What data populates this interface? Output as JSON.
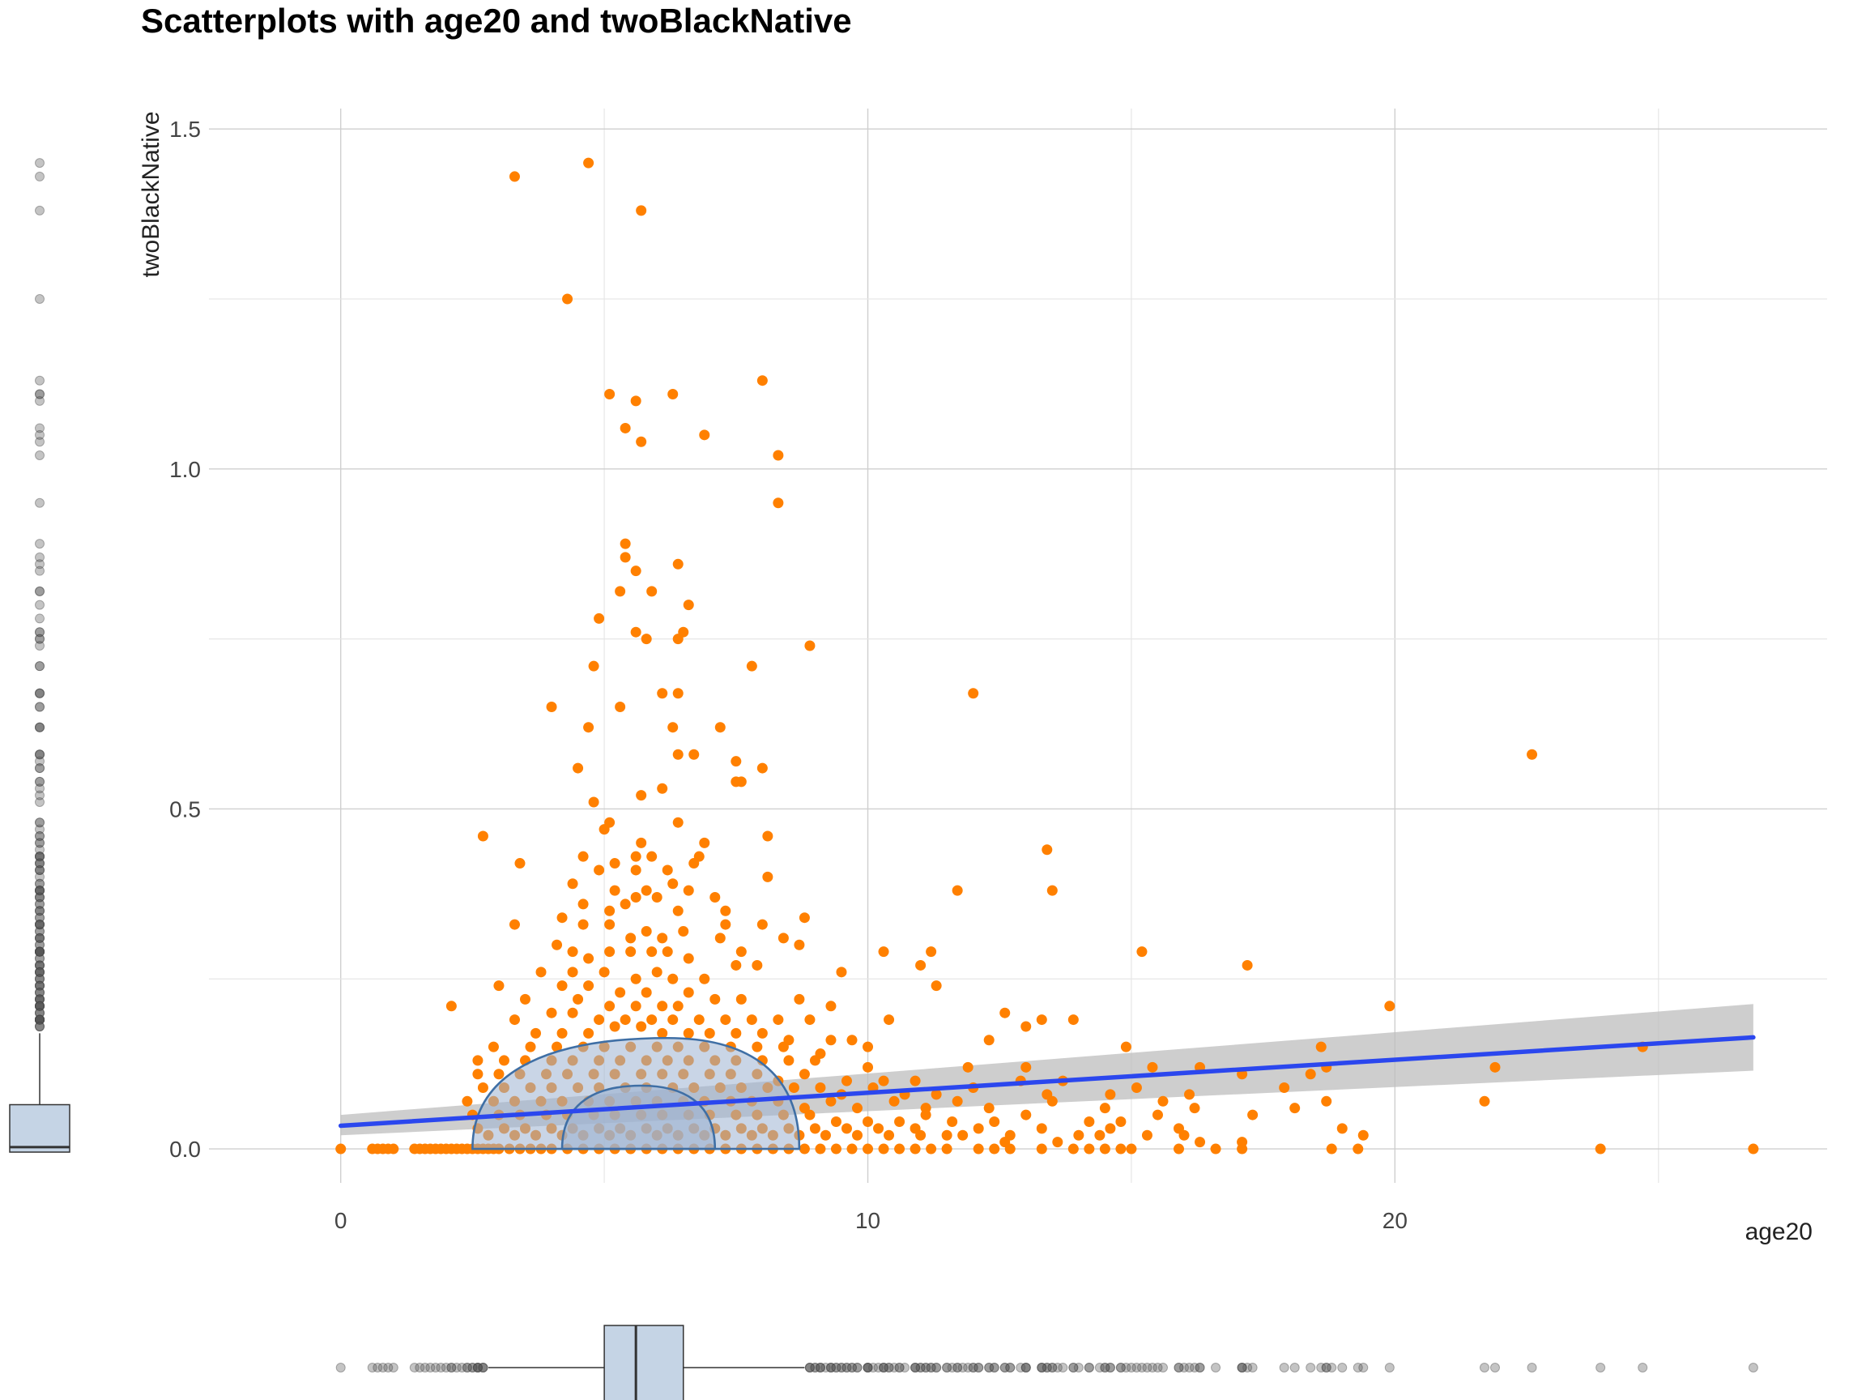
{
  "chart_data": {
    "type": "scatter",
    "title": "Scatterplots with age20 and twoBlackNative",
    "xlabel": "age20",
    "ylabel": "twoBlackNative",
    "xlim": [
      -2.5,
      28.2
    ],
    "ylim": [
      -0.05,
      1.53
    ],
    "x_ticks": [
      0,
      10,
      20
    ],
    "y_ticks": [
      0.0,
      0.5,
      1.0,
      1.5
    ],
    "x_tick_labels": [
      "0",
      "10",
      "20"
    ],
    "y_tick_labels": [
      "0.0",
      "0.5",
      "1.0",
      "1.5"
    ],
    "grid": true,
    "colors": {
      "points": "#ff8000",
      "fit_line": "#2b47ee",
      "confidence_band": "#bdbdbd",
      "density_fill": "#9db3d1",
      "density_stroke": "#3f6fa5",
      "box_fill": "#c5d4e5",
      "marginal_points": "#555555"
    },
    "fit_line": {
      "x": [
        0.0,
        26.8
      ],
      "y": [
        0.034,
        0.164
      ]
    },
    "confidence_band": {
      "x": [
        0.0,
        26.8
      ],
      "y_low": [
        0.02,
        0.115
      ],
      "y_high": [
        0.05,
        0.213
      ]
    },
    "x_boxplot": {
      "q1": 5.0,
      "median": 5.6,
      "q3": 6.5,
      "whisker_low": 2.8,
      "whisker_high": 8.8
    },
    "y_boxplot": {
      "q1": 0.0,
      "median": 0.005,
      "q3": 0.065,
      "whisker_low": 0.0,
      "whisker_high": 0.17
    },
    "points": [
      [
        3.3,
        1.43
      ],
      [
        4.7,
        1.45
      ],
      [
        5.7,
        1.38
      ],
      [
        4.3,
        1.25
      ],
      [
        8.0,
        1.13
      ],
      [
        5.1,
        1.11
      ],
      [
        5.6,
        1.1
      ],
      [
        6.3,
        1.11
      ],
      [
        5.4,
        1.06
      ],
      [
        5.7,
        1.04
      ],
      [
        6.9,
        1.05
      ],
      [
        8.3,
        1.02
      ],
      [
        8.3,
        0.95
      ],
      [
        5.4,
        0.89
      ],
      [
        5.4,
        0.87
      ],
      [
        6.4,
        0.86
      ],
      [
        5.6,
        0.85
      ],
      [
        5.3,
        0.82
      ],
      [
        5.9,
        0.82
      ],
      [
        6.6,
        0.8
      ],
      [
        4.9,
        0.78
      ],
      [
        5.6,
        0.76
      ],
      [
        5.8,
        0.75
      ],
      [
        6.5,
        0.76
      ],
      [
        6.4,
        0.75
      ],
      [
        8.9,
        0.74
      ],
      [
        4.8,
        0.71
      ],
      [
        7.8,
        0.71
      ],
      [
        12.0,
        0.67
      ],
      [
        6.1,
        0.67
      ],
      [
        6.4,
        0.67
      ],
      [
        4.0,
        0.65
      ],
      [
        5.3,
        0.65
      ],
      [
        6.3,
        0.62
      ],
      [
        7.2,
        0.62
      ],
      [
        4.7,
        0.62
      ],
      [
        6.4,
        0.58
      ],
      [
        6.7,
        0.58
      ],
      [
        22.6,
        0.58
      ],
      [
        7.5,
        0.57
      ],
      [
        8.0,
        0.56
      ],
      [
        4.5,
        0.56
      ],
      [
        7.5,
        0.54
      ],
      [
        7.6,
        0.54
      ],
      [
        5.0,
        0.47
      ],
      [
        4.8,
        0.51
      ],
      [
        5.1,
        0.48
      ],
      [
        5.7,
        0.52
      ],
      [
        6.1,
        0.53
      ],
      [
        6.4,
        0.48
      ],
      [
        2.7,
        0.46
      ],
      [
        8.1,
        0.46
      ],
      [
        5.7,
        0.45
      ],
      [
        6.9,
        0.45
      ],
      [
        4.6,
        0.43
      ],
      [
        5.6,
        0.43
      ],
      [
        5.9,
        0.43
      ],
      [
        6.8,
        0.43
      ],
      [
        13.4,
        0.44
      ],
      [
        3.4,
        0.42
      ],
      [
        4.9,
        0.41
      ],
      [
        5.2,
        0.42
      ],
      [
        5.6,
        0.41
      ],
      [
        6.2,
        0.41
      ],
      [
        6.7,
        0.42
      ],
      [
        8.1,
        0.4
      ],
      [
        13.5,
        0.38
      ],
      [
        11.7,
        0.38
      ],
      [
        4.4,
        0.39
      ],
      [
        5.2,
        0.38
      ],
      [
        5.6,
        0.37
      ],
      [
        5.8,
        0.38
      ],
      [
        6.0,
        0.37
      ],
      [
        6.3,
        0.39
      ],
      [
        6.6,
        0.38
      ],
      [
        7.1,
        0.37
      ],
      [
        4.6,
        0.36
      ],
      [
        5.1,
        0.35
      ],
      [
        5.4,
        0.36
      ],
      [
        6.4,
        0.35
      ],
      [
        7.3,
        0.35
      ],
      [
        8.8,
        0.34
      ],
      [
        4.2,
        0.34
      ],
      [
        4.6,
        0.33
      ],
      [
        5.1,
        0.33
      ],
      [
        5.8,
        0.32
      ],
      [
        6.5,
        0.32
      ],
      [
        3.3,
        0.33
      ],
      [
        7.3,
        0.33
      ],
      [
        8.0,
        0.33
      ],
      [
        5.5,
        0.31
      ],
      [
        6.1,
        0.31
      ],
      [
        7.2,
        0.31
      ],
      [
        8.4,
        0.31
      ],
      [
        8.7,
        0.3
      ],
      [
        4.1,
        0.3
      ],
      [
        4.4,
        0.29
      ],
      [
        4.7,
        0.28
      ],
      [
        5.1,
        0.29
      ],
      [
        5.5,
        0.29
      ],
      [
        5.9,
        0.29
      ],
      [
        6.2,
        0.29
      ],
      [
        6.6,
        0.28
      ],
      [
        7.6,
        0.29
      ],
      [
        10.3,
        0.29
      ],
      [
        11.2,
        0.29
      ],
      [
        15.2,
        0.29
      ],
      [
        17.2,
        0.27
      ],
      [
        7.5,
        0.27
      ],
      [
        7.9,
        0.27
      ],
      [
        11.0,
        0.27
      ],
      [
        9.5,
        0.26
      ],
      [
        3.8,
        0.26
      ],
      [
        4.4,
        0.26
      ],
      [
        5.0,
        0.26
      ],
      [
        5.6,
        0.25
      ],
      [
        6.0,
        0.26
      ],
      [
        6.3,
        0.25
      ],
      [
        6.9,
        0.25
      ],
      [
        3.0,
        0.24
      ],
      [
        11.3,
        0.24
      ],
      [
        4.2,
        0.24
      ],
      [
        4.7,
        0.24
      ],
      [
        5.3,
        0.23
      ],
      [
        5.8,
        0.23
      ],
      [
        6.6,
        0.23
      ],
      [
        7.1,
        0.22
      ],
      [
        7.6,
        0.22
      ],
      [
        8.7,
        0.22
      ],
      [
        3.5,
        0.22
      ],
      [
        4.5,
        0.22
      ],
      [
        5.1,
        0.21
      ],
      [
        5.6,
        0.21
      ],
      [
        6.1,
        0.21
      ],
      [
        6.4,
        0.21
      ],
      [
        2.1,
        0.21
      ],
      [
        9.3,
        0.21
      ],
      [
        12.6,
        0.2
      ],
      [
        13.3,
        0.19
      ],
      [
        13.9,
        0.19
      ],
      [
        19.9,
        0.21
      ],
      [
        4.0,
        0.2
      ],
      [
        4.4,
        0.2
      ],
      [
        4.9,
        0.19
      ],
      [
        5.4,
        0.19
      ],
      [
        5.9,
        0.19
      ],
      [
        6.3,
        0.19
      ],
      [
        6.8,
        0.19
      ],
      [
        7.3,
        0.19
      ],
      [
        7.8,
        0.19
      ],
      [
        8.3,
        0.19
      ],
      [
        8.9,
        0.19
      ],
      [
        10.4,
        0.19
      ],
      [
        3.3,
        0.19
      ],
      [
        3.7,
        0.17
      ],
      [
        4.2,
        0.17
      ],
      [
        4.7,
        0.17
      ],
      [
        5.2,
        0.18
      ],
      [
        5.7,
        0.18
      ],
      [
        6.1,
        0.17
      ],
      [
        6.6,
        0.17
      ],
      [
        7.0,
        0.17
      ],
      [
        7.5,
        0.17
      ],
      [
        8.0,
        0.17
      ],
      [
        8.5,
        0.16
      ],
      [
        9.3,
        0.16
      ],
      [
        9.7,
        0.16
      ],
      [
        13.0,
        0.18
      ],
      [
        2.9,
        0.15
      ],
      [
        3.6,
        0.15
      ],
      [
        4.1,
        0.15
      ],
      [
        4.6,
        0.15
      ],
      [
        5.0,
        0.15
      ],
      [
        5.5,
        0.15
      ],
      [
        6.0,
        0.15
      ],
      [
        6.4,
        0.15
      ],
      [
        6.9,
        0.15
      ],
      [
        7.4,
        0.15
      ],
      [
        7.9,
        0.15
      ],
      [
        8.4,
        0.15
      ],
      [
        9.1,
        0.14
      ],
      [
        10.0,
        0.15
      ],
      [
        12.3,
        0.16
      ],
      [
        14.9,
        0.15
      ],
      [
        18.6,
        0.15
      ],
      [
        24.7,
        0.15
      ],
      [
        2.6,
        0.13
      ],
      [
        3.1,
        0.13
      ],
      [
        3.5,
        0.13
      ],
      [
        4.0,
        0.13
      ],
      [
        4.4,
        0.13
      ],
      [
        4.9,
        0.13
      ],
      [
        5.3,
        0.13
      ],
      [
        5.8,
        0.13
      ],
      [
        6.2,
        0.13
      ],
      [
        6.6,
        0.13
      ],
      [
        7.1,
        0.13
      ],
      [
        7.5,
        0.13
      ],
      [
        8.0,
        0.13
      ],
      [
        8.5,
        0.13
      ],
      [
        9.0,
        0.13
      ],
      [
        10.0,
        0.12
      ],
      [
        11.9,
        0.12
      ],
      [
        13.0,
        0.12
      ],
      [
        15.4,
        0.12
      ],
      [
        16.3,
        0.12
      ],
      [
        18.7,
        0.12
      ],
      [
        21.9,
        0.12
      ],
      [
        2.6,
        0.11
      ],
      [
        3.0,
        0.11
      ],
      [
        3.4,
        0.11
      ],
      [
        3.9,
        0.11
      ],
      [
        4.3,
        0.11
      ],
      [
        4.8,
        0.11
      ],
      [
        5.2,
        0.11
      ],
      [
        5.7,
        0.11
      ],
      [
        6.1,
        0.11
      ],
      [
        6.5,
        0.11
      ],
      [
        7.0,
        0.11
      ],
      [
        7.4,
        0.11
      ],
      [
        7.9,
        0.11
      ],
      [
        8.3,
        0.1
      ],
      [
        8.8,
        0.11
      ],
      [
        9.6,
        0.1
      ],
      [
        10.3,
        0.1
      ],
      [
        10.9,
        0.1
      ],
      [
        12.9,
        0.1
      ],
      [
        13.7,
        0.1
      ],
      [
        17.1,
        0.11
      ],
      [
        18.4,
        0.11
      ],
      [
        2.7,
        0.09
      ],
      [
        3.1,
        0.09
      ],
      [
        3.6,
        0.09
      ],
      [
        4.0,
        0.09
      ],
      [
        4.5,
        0.09
      ],
      [
        4.9,
        0.09
      ],
      [
        5.4,
        0.09
      ],
      [
        5.8,
        0.09
      ],
      [
        6.3,
        0.09
      ],
      [
        6.7,
        0.09
      ],
      [
        7.2,
        0.09
      ],
      [
        7.6,
        0.09
      ],
      [
        8.1,
        0.09
      ],
      [
        8.6,
        0.09
      ],
      [
        9.1,
        0.09
      ],
      [
        9.5,
        0.08
      ],
      [
        10.1,
        0.09
      ],
      [
        10.7,
        0.08
      ],
      [
        11.3,
        0.08
      ],
      [
        12.0,
        0.09
      ],
      [
        13.4,
        0.08
      ],
      [
        14.6,
        0.08
      ],
      [
        15.1,
        0.09
      ],
      [
        16.1,
        0.08
      ],
      [
        17.9,
        0.09
      ],
      [
        18.7,
        0.07
      ],
      [
        2.4,
        0.07
      ],
      [
        2.9,
        0.07
      ],
      [
        3.3,
        0.07
      ],
      [
        3.8,
        0.07
      ],
      [
        4.2,
        0.07
      ],
      [
        4.7,
        0.07
      ],
      [
        5.1,
        0.07
      ],
      [
        5.6,
        0.07
      ],
      [
        6.0,
        0.07
      ],
      [
        6.5,
        0.07
      ],
      [
        6.9,
        0.07
      ],
      [
        7.4,
        0.07
      ],
      [
        7.8,
        0.07
      ],
      [
        8.3,
        0.07
      ],
      [
        8.8,
        0.06
      ],
      [
        9.3,
        0.07
      ],
      [
        9.8,
        0.06
      ],
      [
        10.5,
        0.07
      ],
      [
        11.1,
        0.06
      ],
      [
        11.7,
        0.07
      ],
      [
        12.3,
        0.06
      ],
      [
        13.5,
        0.07
      ],
      [
        14.5,
        0.06
      ],
      [
        15.6,
        0.07
      ],
      [
        16.2,
        0.06
      ],
      [
        18.1,
        0.06
      ],
      [
        21.7,
        0.07
      ],
      [
        2.5,
        0.05
      ],
      [
        3.0,
        0.05
      ],
      [
        3.4,
        0.05
      ],
      [
        3.9,
        0.05
      ],
      [
        4.3,
        0.05
      ],
      [
        4.8,
        0.05
      ],
      [
        5.2,
        0.05
      ],
      [
        5.7,
        0.05
      ],
      [
        6.1,
        0.05
      ],
      [
        6.6,
        0.05
      ],
      [
        7.0,
        0.05
      ],
      [
        7.5,
        0.05
      ],
      [
        7.9,
        0.05
      ],
      [
        8.4,
        0.05
      ],
      [
        8.9,
        0.05
      ],
      [
        9.4,
        0.04
      ],
      [
        10.0,
        0.04
      ],
      [
        10.6,
        0.04
      ],
      [
        11.1,
        0.05
      ],
      [
        11.6,
        0.04
      ],
      [
        12.4,
        0.04
      ],
      [
        13.0,
        0.05
      ],
      [
        14.2,
        0.04
      ],
      [
        14.8,
        0.04
      ],
      [
        15.5,
        0.05
      ],
      [
        17.3,
        0.05
      ],
      [
        19.0,
        0.03
      ],
      [
        2.6,
        0.03
      ],
      [
        3.1,
        0.03
      ],
      [
        3.5,
        0.03
      ],
      [
        4.0,
        0.03
      ],
      [
        4.4,
        0.03
      ],
      [
        4.9,
        0.03
      ],
      [
        5.3,
        0.03
      ],
      [
        5.8,
        0.03
      ],
      [
        6.2,
        0.03
      ],
      [
        6.7,
        0.03
      ],
      [
        7.1,
        0.03
      ],
      [
        7.6,
        0.03
      ],
      [
        8.0,
        0.03
      ],
      [
        8.5,
        0.03
      ],
      [
        9.0,
        0.03
      ],
      [
        9.6,
        0.03
      ],
      [
        10.2,
        0.03
      ],
      [
        10.9,
        0.03
      ],
      [
        11.5,
        0.02
      ],
      [
        12.1,
        0.03
      ],
      [
        12.7,
        0.02
      ],
      [
        13.3,
        0.03
      ],
      [
        14.0,
        0.02
      ],
      [
        14.6,
        0.03
      ],
      [
        15.3,
        0.02
      ],
      [
        15.9,
        0.03
      ],
      [
        16.0,
        0.02
      ],
      [
        19.4,
        0.02
      ],
      [
        2.8,
        0.02
      ],
      [
        3.3,
        0.02
      ],
      [
        3.7,
        0.02
      ],
      [
        4.2,
        0.02
      ],
      [
        4.6,
        0.02
      ],
      [
        5.1,
        0.02
      ],
      [
        5.5,
        0.02
      ],
      [
        6.0,
        0.02
      ],
      [
        6.4,
        0.02
      ],
      [
        6.9,
        0.02
      ],
      [
        7.3,
        0.02
      ],
      [
        7.8,
        0.02
      ],
      [
        8.2,
        0.02
      ],
      [
        8.7,
        0.02
      ],
      [
        9.2,
        0.02
      ],
      [
        9.8,
        0.02
      ],
      [
        10.4,
        0.02
      ],
      [
        11.0,
        0.02
      ],
      [
        11.8,
        0.02
      ],
      [
        12.6,
        0.01
      ],
      [
        13.6,
        0.01
      ],
      [
        14.4,
        0.02
      ],
      [
        16.3,
        0.01
      ],
      [
        17.1,
        0.01
      ],
      [
        0.0,
        0.0
      ],
      [
        0.6,
        0.0
      ],
      [
        0.7,
        0.0
      ],
      [
        0.8,
        0.0
      ],
      [
        0.9,
        0.0
      ],
      [
        1.0,
        0.0
      ],
      [
        1.4,
        0.0
      ],
      [
        1.5,
        0.0
      ],
      [
        1.6,
        0.0
      ],
      [
        1.7,
        0.0
      ],
      [
        1.8,
        0.0
      ],
      [
        1.9,
        0.0
      ],
      [
        2.0,
        0.0
      ],
      [
        2.1,
        0.0
      ],
      [
        2.2,
        0.0
      ],
      [
        2.3,
        0.0
      ],
      [
        2.4,
        0.0
      ],
      [
        2.5,
        0.0
      ],
      [
        2.6,
        0.0
      ],
      [
        2.7,
        0.0
      ],
      [
        2.8,
        0.0
      ],
      [
        2.9,
        0.0
      ],
      [
        3.0,
        0.0
      ],
      [
        3.2,
        0.0
      ],
      [
        3.4,
        0.0
      ],
      [
        3.6,
        0.0
      ],
      [
        3.8,
        0.0
      ],
      [
        4.0,
        0.0
      ],
      [
        4.3,
        0.0
      ],
      [
        4.6,
        0.0
      ],
      [
        4.9,
        0.0
      ],
      [
        5.2,
        0.0
      ],
      [
        5.5,
        0.0
      ],
      [
        5.8,
        0.0
      ],
      [
        6.1,
        0.0
      ],
      [
        6.4,
        0.0
      ],
      [
        6.7,
        0.0
      ],
      [
        7.0,
        0.0
      ],
      [
        7.3,
        0.0
      ],
      [
        7.6,
        0.0
      ],
      [
        7.9,
        0.0
      ],
      [
        8.2,
        0.0
      ],
      [
        8.5,
        0.0
      ],
      [
        8.8,
        0.0
      ],
      [
        9.1,
        0.0
      ],
      [
        9.4,
        0.0
      ],
      [
        9.7,
        0.0
      ],
      [
        10.0,
        0.0
      ],
      [
        10.3,
        0.0
      ],
      [
        10.6,
        0.0
      ],
      [
        10.9,
        0.0
      ],
      [
        11.2,
        0.0
      ],
      [
        11.5,
        0.0
      ],
      [
        12.1,
        0.0
      ],
      [
        12.4,
        0.0
      ],
      [
        12.7,
        0.0
      ],
      [
        13.3,
        0.0
      ],
      [
        13.9,
        0.0
      ],
      [
        14.2,
        0.0
      ],
      [
        14.5,
        0.0
      ],
      [
        14.8,
        0.0
      ],
      [
        15.0,
        0.0
      ],
      [
        15.9,
        0.0
      ],
      [
        16.6,
        0.0
      ],
      [
        17.1,
        0.0
      ],
      [
        18.8,
        0.0
      ],
      [
        19.3,
        0.0
      ],
      [
        23.9,
        0.0
      ],
      [
        26.8,
        0.0
      ]
    ]
  }
}
